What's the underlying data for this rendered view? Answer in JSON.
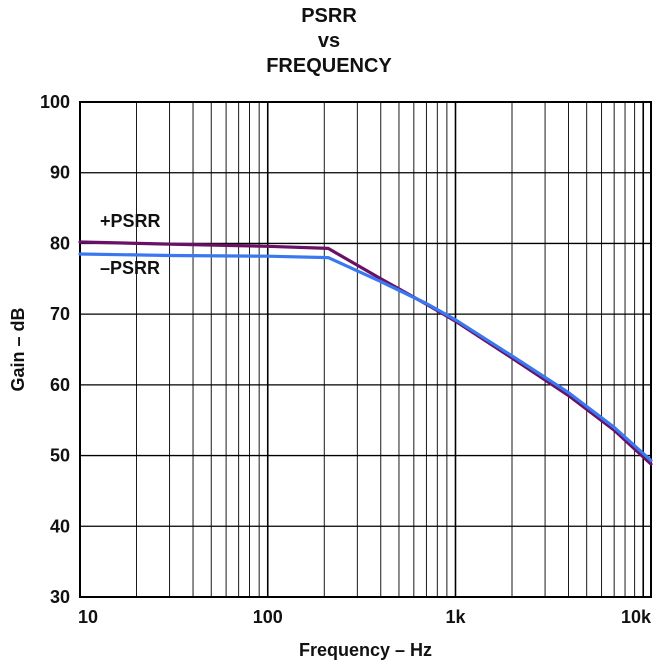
{
  "chart_data": {
    "type": "line",
    "title_lines": [
      "PSRR",
      "vs",
      "FREQUENCY"
    ],
    "xlabel": "Frequency – Hz",
    "ylabel": "Gain – dB",
    "x_scale": "log",
    "xlim": [
      10,
      11000
    ],
    "ylim": [
      30,
      100
    ],
    "x_ticks": [
      {
        "value": 10,
        "label": "10"
      },
      {
        "value": 100,
        "label": "100"
      },
      {
        "value": 1000,
        "label": "1k"
      },
      {
        "value": 10000,
        "label": "10k"
      }
    ],
    "y_ticks": [
      30,
      40,
      50,
      60,
      70,
      80,
      90,
      100
    ],
    "grid": true,
    "series": [
      {
        "name": "+PSRR",
        "color": "#6a1166",
        "x": [
          10,
          30,
          100,
          210,
          400,
          700,
          1000,
          2000,
          4000,
          7000,
          11000
        ],
        "y": [
          80.2,
          79.9,
          79.6,
          79.3,
          75.0,
          71.4,
          69.0,
          63.8,
          58.5,
          53.6,
          48.8
        ]
      },
      {
        "name": "–PSRR",
        "color": "#3a78f2",
        "x": [
          10,
          30,
          100,
          210,
          400,
          700,
          1000,
          2000,
          4000,
          7000,
          11000
        ],
        "y": [
          78.5,
          78.3,
          78.2,
          78.0,
          74.6,
          71.5,
          69.2,
          64.1,
          58.9,
          54.0,
          49.3
        ]
      }
    ]
  }
}
